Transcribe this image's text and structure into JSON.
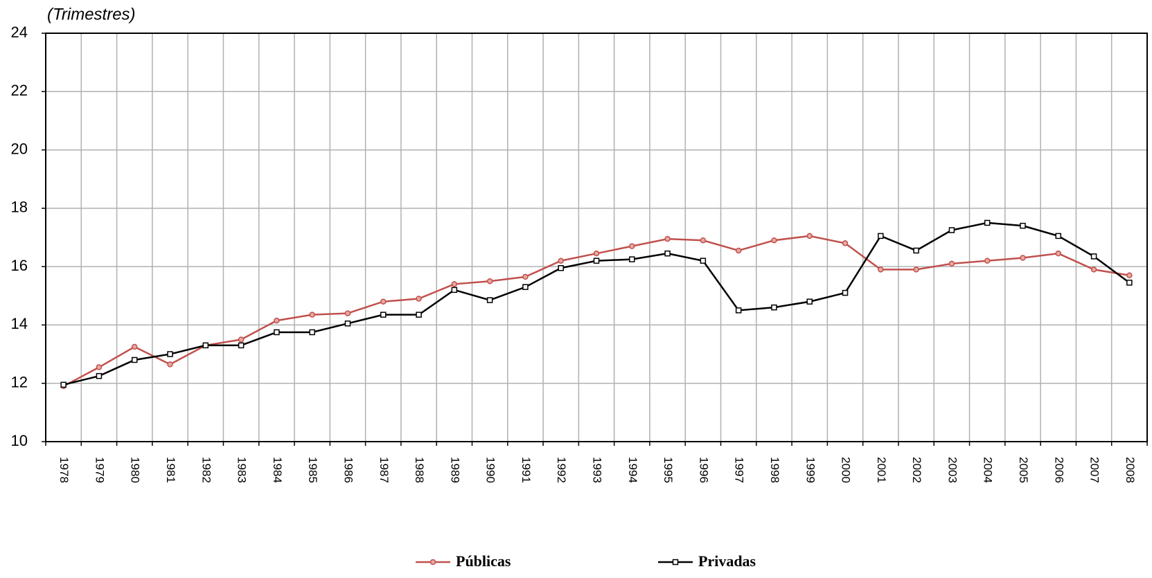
{
  "chart_data": {
    "type": "line",
    "y_label": "(Trimestres)",
    "categories": [
      "1978",
      "1979",
      "1980",
      "1981",
      "1982",
      "1983",
      "1984",
      "1985",
      "1986",
      "1987",
      "1988",
      "1989",
      "1990",
      "1991",
      "1992",
      "1993",
      "1994",
      "1995",
      "1996",
      "1997",
      "1998",
      "1999",
      "2000",
      "2001",
      "2002",
      "2003",
      "2004",
      "2005",
      "2006",
      "2007",
      "2008"
    ],
    "series": [
      {
        "name": "Públicas",
        "color": "#c0504d",
        "marker": "circle",
        "values": [
          11.9,
          12.55,
          13.25,
          12.65,
          13.3,
          13.5,
          14.15,
          14.35,
          14.4,
          14.8,
          14.9,
          15.4,
          15.5,
          15.65,
          16.2,
          16.45,
          16.7,
          16.95,
          16.9,
          16.55,
          16.9,
          17.05,
          16.8,
          15.9,
          15.9,
          16.1,
          16.2,
          16.3,
          16.45,
          15.9,
          15.7
        ]
      },
      {
        "name": "Privadas",
        "color": "#000000",
        "marker": "square",
        "values": [
          11.95,
          12.25,
          12.8,
          13.0,
          13.3,
          13.3,
          13.75,
          13.75,
          14.05,
          14.35,
          14.35,
          15.2,
          14.85,
          15.3,
          15.95,
          16.2,
          16.25,
          16.45,
          16.2,
          14.5,
          14.6,
          14.8,
          15.1,
          17.05,
          16.55,
          17.25,
          17.5,
          17.4,
          17.05,
          16.35,
          15.45
        ]
      }
    ],
    "ylim": [
      10,
      24
    ],
    "yticks": [
      10,
      12,
      14,
      16,
      18,
      20,
      22,
      24
    ],
    "grid": true,
    "legend": "bottom"
  }
}
